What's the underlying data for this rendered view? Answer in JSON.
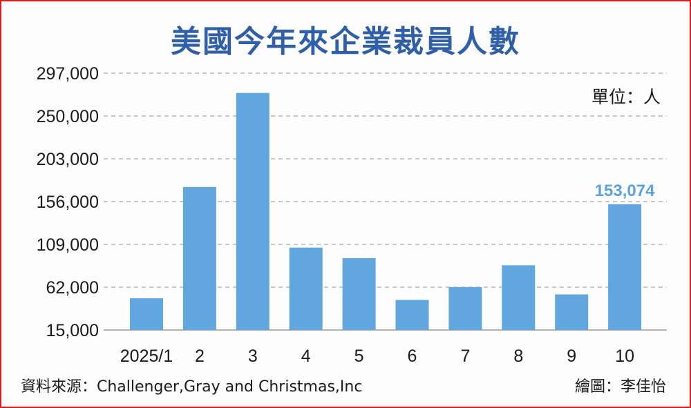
{
  "title": "美國今年來企業裁員人數",
  "unit": "單位：人",
  "source": "資料來源：Challenger,Gray and Christmas,Inc",
  "credit": "繪圖：李佳怡",
  "colors": {
    "bar": "#62a6df",
    "label": "#5ba2de",
    "grid": "#b5b5b5",
    "title": "#2f5fa8",
    "border": "#e01a1a"
  },
  "chart_data": {
    "type": "bar",
    "categories": [
      "2025/1",
      "2",
      "3",
      "4",
      "5",
      "6",
      "7",
      "8",
      "9",
      "10"
    ],
    "values": [
      49795,
      172017,
      275240,
      105441,
      93816,
      47999,
      62075,
      85979,
      54064,
      153074
    ],
    "y_ticks": [
      "297,000",
      "250,000",
      "203,000",
      "156,000",
      "109,000",
      "62,000",
      "15,000"
    ],
    "ylim": [
      15000,
      297000
    ],
    "data_labels": [
      {
        "index": 9,
        "text": "153,074"
      }
    ],
    "grid": true
  }
}
